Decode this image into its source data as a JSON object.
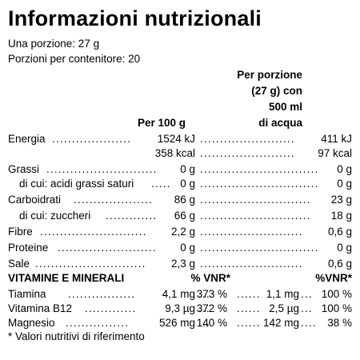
{
  "title": "Informazioni nutrizionali",
  "serving": "Una porzione: 27 g",
  "servings_per_container": "Porzioni per contenitore: 20",
  "headers": {
    "per_100g": "Per 100 g",
    "per_serving_l1": "Per porzione",
    "per_serving_l2": "(27 g) con",
    "per_serving_l3": "500 ml",
    "per_serving_l4": "di acqua"
  },
  "nutrients": [
    {
      "label": "Energia",
      "per_100g": "1524 kJ",
      "per_serving": "411 kJ"
    },
    {
      "label": "",
      "per_100g": "358 kcal",
      "per_serving": "97 kcal"
    },
    {
      "label": "Grassi",
      "per_100g": "0 g",
      "per_serving": "0 g"
    },
    {
      "label": "di cui: acidi grassi saturi",
      "per_100g": "0 g",
      "per_serving": "0 g"
    },
    {
      "label": "Carboidrati",
      "per_100g": "86 g",
      "per_serving": "23 g"
    },
    {
      "label": "di cui: zuccheri",
      "per_100g": "66 g",
      "per_serving": "18 g"
    },
    {
      "label": "Fibre",
      "per_100g": "2,2 g",
      "per_serving": "0,6 g"
    },
    {
      "label": "Proteine",
      "per_100g": "0 g",
      "per_serving": "0 g"
    },
    {
      "label": "Sale",
      "per_100g": "2,3 g",
      "per_serving": "0,6 g"
    }
  ],
  "vitamins_header": {
    "label": "VITAMINE E MINERALI",
    "vnr1": "% VNR*",
    "vnr2": "%VNR*"
  },
  "vitamins": [
    {
      "label": "Tiamina",
      "per_100g": "4,1 mg",
      "vnr_100g": "373 %",
      "per_serving": "1,1 mg",
      "vnr_serving": "100 %"
    },
    {
      "label": "Vitamina B12",
      "per_100g": "9,3 µg",
      "vnr_100g": "372 %",
      "per_serving": "2,5 µg",
      "vnr_serving": "100 %"
    },
    {
      "label": "Magnesio",
      "per_100g": "526 mg",
      "vnr_100g": "140 %",
      "per_serving": "142 mg",
      "vnr_serving": "38 %"
    }
  ],
  "footnote": "* Valori nutritivi di riferimento"
}
